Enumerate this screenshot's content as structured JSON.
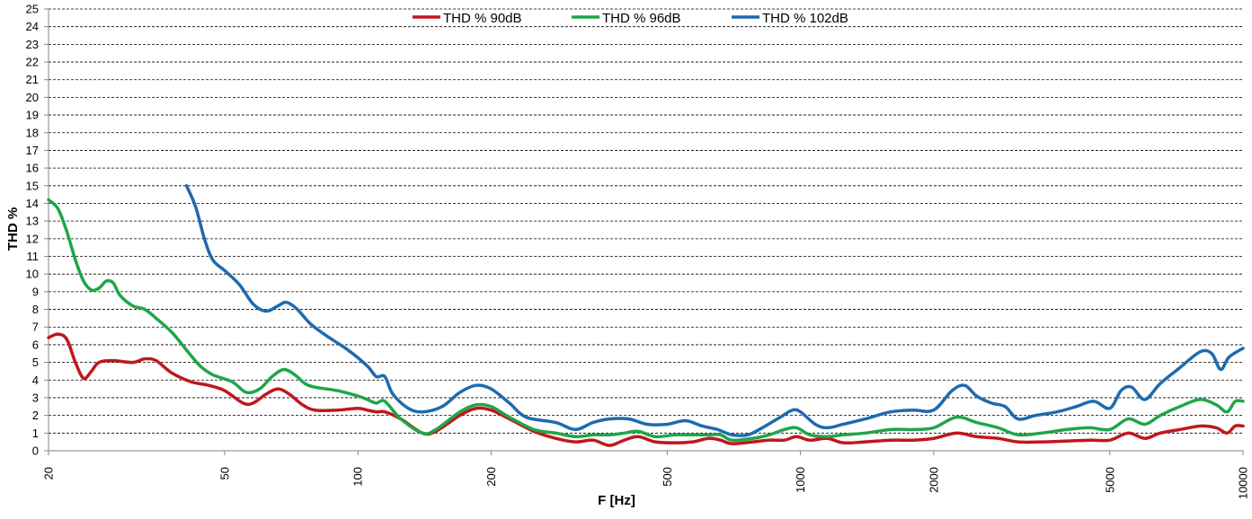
{
  "chart_data": {
    "type": "line",
    "xlabel": "F [Hz]",
    "ylabel": "THD %",
    "x_scale": "log",
    "xlim": [
      20,
      10000
    ],
    "ylim": [
      0,
      25
    ],
    "grid": true,
    "legend_position": "top",
    "x_ticks": [
      20,
      50,
      100,
      200,
      500,
      1000,
      2000,
      5000,
      10000
    ],
    "y_ticks": [
      0,
      1,
      2,
      3,
      4,
      5,
      6,
      7,
      8,
      9,
      10,
      11,
      12,
      13,
      14,
      15,
      16,
      17,
      18,
      19,
      20,
      21,
      22,
      23,
      24,
      25
    ],
    "series": [
      {
        "name": "THD % 90dB",
        "color": "#C0171C",
        "points": [
          [
            20,
            6.4
          ],
          [
            21,
            6.6
          ],
          [
            22,
            6.3
          ],
          [
            23,
            5.0
          ],
          [
            24,
            4.1
          ],
          [
            25,
            4.5
          ],
          [
            26,
            5.0
          ],
          [
            28,
            5.1
          ],
          [
            31,
            5.0
          ],
          [
            33,
            5.2
          ],
          [
            35,
            5.1
          ],
          [
            38,
            4.4
          ],
          [
            42,
            3.9
          ],
          [
            46,
            3.7
          ],
          [
            50,
            3.4
          ],
          [
            55,
            2.7
          ],
          [
            58,
            2.7
          ],
          [
            62,
            3.2
          ],
          [
            66,
            3.5
          ],
          [
            70,
            3.2
          ],
          [
            75,
            2.6
          ],
          [
            80,
            2.3
          ],
          [
            90,
            2.3
          ],
          [
            100,
            2.4
          ],
          [
            105,
            2.3
          ],
          [
            110,
            2.2
          ],
          [
            115,
            2.2
          ],
          [
            125,
            1.8
          ],
          [
            140,
            1.0
          ],
          [
            150,
            1.1
          ],
          [
            170,
            2.0
          ],
          [
            185,
            2.4
          ],
          [
            200,
            2.3
          ],
          [
            220,
            1.8
          ],
          [
            250,
            1.1
          ],
          [
            280,
            0.7
          ],
          [
            310,
            0.5
          ],
          [
            340,
            0.6
          ],
          [
            370,
            0.3
          ],
          [
            400,
            0.6
          ],
          [
            430,
            0.8
          ],
          [
            470,
            0.5
          ],
          [
            520,
            0.45
          ],
          [
            570,
            0.5
          ],
          [
            620,
            0.7
          ],
          [
            660,
            0.6
          ],
          [
            700,
            0.4
          ],
          [
            780,
            0.5
          ],
          [
            850,
            0.6
          ],
          [
            920,
            0.6
          ],
          [
            980,
            0.8
          ],
          [
            1050,
            0.6
          ],
          [
            1150,
            0.7
          ],
          [
            1250,
            0.45
          ],
          [
            1400,
            0.5
          ],
          [
            1600,
            0.6
          ],
          [
            1800,
            0.6
          ],
          [
            2000,
            0.7
          ],
          [
            2250,
            1.0
          ],
          [
            2500,
            0.8
          ],
          [
            2800,
            0.7
          ],
          [
            3100,
            0.5
          ],
          [
            3500,
            0.5
          ],
          [
            4000,
            0.55
          ],
          [
            4500,
            0.6
          ],
          [
            5000,
            0.6
          ],
          [
            5500,
            1.0
          ],
          [
            6000,
            0.7
          ],
          [
            6500,
            1.0
          ],
          [
            7200,
            1.2
          ],
          [
            8000,
            1.4
          ],
          [
            8700,
            1.3
          ],
          [
            9200,
            1.0
          ],
          [
            9600,
            1.4
          ],
          [
            10000,
            1.4
          ]
        ]
      },
      {
        "name": "THD % 96dB",
        "color": "#1EA64A",
        "points": [
          [
            20,
            14.2
          ],
          [
            21,
            13.7
          ],
          [
            22,
            12.4
          ],
          [
            23,
            10.8
          ],
          [
            24,
            9.6
          ],
          [
            25,
            9.1
          ],
          [
            26,
            9.2
          ],
          [
            27,
            9.6
          ],
          [
            28,
            9.5
          ],
          [
            29,
            8.8
          ],
          [
            31,
            8.2
          ],
          [
            33,
            8.0
          ],
          [
            35,
            7.5
          ],
          [
            38,
            6.7
          ],
          [
            41,
            5.7
          ],
          [
            44,
            4.8
          ],
          [
            47,
            4.3
          ],
          [
            52,
            3.9
          ],
          [
            56,
            3.3
          ],
          [
            60,
            3.5
          ],
          [
            64,
            4.2
          ],
          [
            68,
            4.6
          ],
          [
            72,
            4.3
          ],
          [
            76,
            3.8
          ],
          [
            80,
            3.6
          ],
          [
            90,
            3.4
          ],
          [
            100,
            3.1
          ],
          [
            105,
            2.9
          ],
          [
            110,
            2.7
          ],
          [
            115,
            2.8
          ],
          [
            125,
            1.8
          ],
          [
            140,
            1.0
          ],
          [
            150,
            1.2
          ],
          [
            170,
            2.2
          ],
          [
            185,
            2.6
          ],
          [
            200,
            2.5
          ],
          [
            220,
            1.9
          ],
          [
            250,
            1.2
          ],
          [
            280,
            1.0
          ],
          [
            310,
            0.8
          ],
          [
            340,
            0.9
          ],
          [
            370,
            0.9
          ],
          [
            400,
            1.0
          ],
          [
            430,
            1.1
          ],
          [
            470,
            0.8
          ],
          [
            520,
            0.9
          ],
          [
            570,
            0.9
          ],
          [
            620,
            0.9
          ],
          [
            660,
            0.9
          ],
          [
            700,
            0.6
          ],
          [
            780,
            0.7
          ],
          [
            850,
            0.9
          ],
          [
            920,
            1.2
          ],
          [
            980,
            1.3
          ],
          [
            1050,
            0.9
          ],
          [
            1150,
            0.8
          ],
          [
            1250,
            0.9
          ],
          [
            1400,
            1.0
          ],
          [
            1600,
            1.2
          ],
          [
            1800,
            1.2
          ],
          [
            2000,
            1.3
          ],
          [
            2250,
            1.9
          ],
          [
            2500,
            1.6
          ],
          [
            2800,
            1.3
          ],
          [
            3100,
            0.9
          ],
          [
            3500,
            1.0
          ],
          [
            4000,
            1.2
          ],
          [
            4500,
            1.3
          ],
          [
            5000,
            1.2
          ],
          [
            5500,
            1.8
          ],
          [
            6000,
            1.5
          ],
          [
            6500,
            2.0
          ],
          [
            7200,
            2.5
          ],
          [
            8000,
            2.9
          ],
          [
            8700,
            2.6
          ],
          [
            9200,
            2.2
          ],
          [
            9600,
            2.8
          ],
          [
            10000,
            2.8
          ]
        ]
      },
      {
        "name": "THD % 102dB",
        "color": "#1F6AAE",
        "points": [
          [
            41,
            15.0
          ],
          [
            43,
            13.8
          ],
          [
            45,
            12.0
          ],
          [
            47,
            10.8
          ],
          [
            50,
            10.2
          ],
          [
            54,
            9.4
          ],
          [
            58,
            8.3
          ],
          [
            62,
            7.9
          ],
          [
            66,
            8.2
          ],
          [
            69,
            8.4
          ],
          [
            73,
            8.0
          ],
          [
            78,
            7.2
          ],
          [
            85,
            6.5
          ],
          [
            95,
            5.7
          ],
          [
            105,
            4.8
          ],
          [
            110,
            4.2
          ],
          [
            115,
            4.2
          ],
          [
            120,
            3.2
          ],
          [
            130,
            2.4
          ],
          [
            140,
            2.2
          ],
          [
            155,
            2.5
          ],
          [
            170,
            3.3
          ],
          [
            185,
            3.7
          ],
          [
            200,
            3.5
          ],
          [
            220,
            2.7
          ],
          [
            240,
            1.9
          ],
          [
            280,
            1.6
          ],
          [
            310,
            1.2
          ],
          [
            340,
            1.6
          ],
          [
            370,
            1.8
          ],
          [
            410,
            1.8
          ],
          [
            450,
            1.5
          ],
          [
            500,
            1.5
          ],
          [
            550,
            1.7
          ],
          [
            600,
            1.4
          ],
          [
            650,
            1.2
          ],
          [
            700,
            0.9
          ],
          [
            760,
            0.9
          ],
          [
            820,
            1.3
          ],
          [
            900,
            1.9
          ],
          [
            960,
            2.3
          ],
          [
            1000,
            2.2
          ],
          [
            1080,
            1.5
          ],
          [
            1150,
            1.3
          ],
          [
            1250,
            1.5
          ],
          [
            1400,
            1.8
          ],
          [
            1600,
            2.2
          ],
          [
            1800,
            2.3
          ],
          [
            2000,
            2.3
          ],
          [
            2200,
            3.4
          ],
          [
            2350,
            3.7
          ],
          [
            2500,
            3.1
          ],
          [
            2700,
            2.7
          ],
          [
            2900,
            2.5
          ],
          [
            3100,
            1.8
          ],
          [
            3400,
            2.0
          ],
          [
            3800,
            2.2
          ],
          [
            4200,
            2.5
          ],
          [
            4600,
            2.8
          ],
          [
            5000,
            2.4
          ],
          [
            5300,
            3.4
          ],
          [
            5600,
            3.6
          ],
          [
            6000,
            2.9
          ],
          [
            6500,
            3.8
          ],
          [
            7200,
            4.7
          ],
          [
            8000,
            5.6
          ],
          [
            8500,
            5.5
          ],
          [
            8900,
            4.6
          ],
          [
            9300,
            5.3
          ],
          [
            10000,
            5.8
          ]
        ]
      }
    ]
  }
}
